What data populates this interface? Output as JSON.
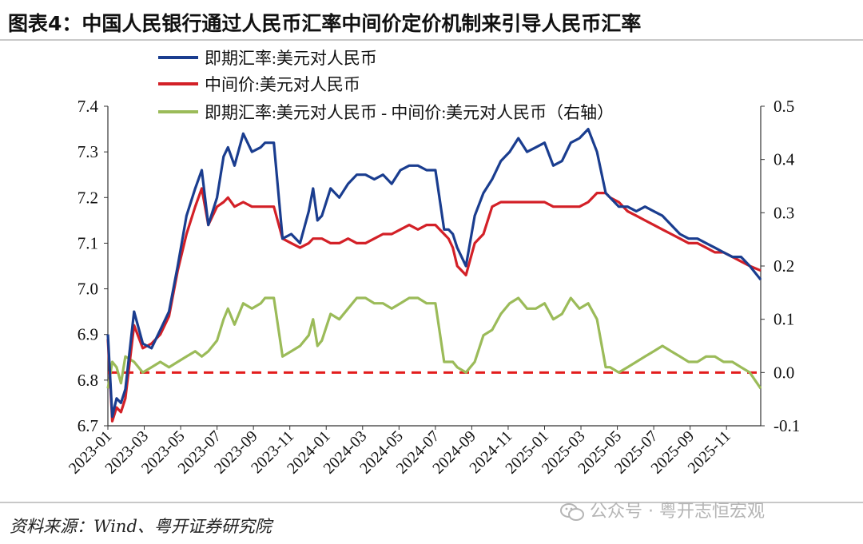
{
  "header": {
    "title": "图表4：中国人民银行通过人民币汇率中间价定价机制来引导人民币汇率"
  },
  "footer": {
    "source": "资料来源：Wind、粤开证券研究院",
    "watermark": "公众号 · 粤开志恒宏观",
    "watermark_icon": "wechat-icon"
  },
  "colors": {
    "spot": "#1a3d8f",
    "central": "#d32027",
    "diff": "#9bbb59",
    "zero": "#e21c1c"
  },
  "chart_data": {
    "type": "line",
    "x_tick_labels": [
      "2023-01",
      "2023-03",
      "2023-05",
      "2023-07",
      "2023-09",
      "2023-11",
      "2024-01",
      "2024-03",
      "2024-05",
      "2024-07",
      "2024-09",
      "2024-11",
      "2025-01",
      "2025-03",
      "2025-05",
      "2025-07",
      "2025-09",
      "2025-11"
    ],
    "x_range": [
      2023.0,
      2025.99
    ],
    "y_left": {
      "min": 6.7,
      "max": 7.4,
      "ticks": [
        "7.4",
        "7.3",
        "7.2",
        "7.1",
        "7.0",
        "6.9",
        "6.8",
        "6.7"
      ]
    },
    "y_right": {
      "min": -0.1,
      "max": 0.5,
      "ticks": [
        "0.5",
        "0.4",
        "0.3",
        "0.2",
        "0.1",
        "0.0",
        "-0.1"
      ]
    },
    "legend": [
      "即期汇率:美元对人民币",
      "中间价:美元对人民币",
      "即期汇率:美元对人民币 - 中间价:美元对人民币（右轴）"
    ],
    "reference_line": {
      "axis": "right",
      "value": 0.0
    },
    "series": [
      {
        "name": "即期汇率:美元对人民币",
        "axis": "left",
        "x": [
          2023.0,
          2023.02,
          2023.04,
          2023.06,
          2023.08,
          2023.12,
          2023.16,
          2023.2,
          2023.24,
          2023.28,
          2023.32,
          2023.36,
          2023.4,
          2023.43,
          2023.46,
          2023.5,
          2023.53,
          2023.55,
          2023.58,
          2023.62,
          2023.66,
          2023.7,
          2023.72,
          2023.76,
          2023.8,
          2023.84,
          2023.88,
          2023.92,
          2023.94,
          2023.96,
          2023.98,
          2024.02,
          2024.06,
          2024.1,
          2024.14,
          2024.18,
          2024.22,
          2024.26,
          2024.3,
          2024.34,
          2024.38,
          2024.42,
          2024.46,
          2024.5,
          2024.54,
          2024.56,
          2024.58,
          2024.6,
          2024.64,
          2024.68,
          2024.72,
          2024.76,
          2024.8,
          2024.84,
          2024.88,
          2024.92,
          2024.96,
          2025.0,
          2025.04,
          2025.08,
          2025.12,
          2025.16,
          2025.2,
          2025.24,
          2025.28,
          2025.3,
          2025.34,
          2025.38,
          2025.42,
          2025.46,
          2025.5,
          2025.54,
          2025.58,
          2025.62,
          2025.66,
          2025.7,
          2025.74,
          2025.78,
          2025.82,
          2025.86,
          2025.9,
          2025.94,
          2025.99
        ],
        "y": [
          6.9,
          6.72,
          6.76,
          6.75,
          6.78,
          6.95,
          6.88,
          6.87,
          6.91,
          6.95,
          7.05,
          7.16,
          7.22,
          7.26,
          7.14,
          7.2,
          7.29,
          7.31,
          7.27,
          7.34,
          7.3,
          7.31,
          7.32,
          7.32,
          7.11,
          7.12,
          7.1,
          7.17,
          7.22,
          7.15,
          7.16,
          7.22,
          7.2,
          7.23,
          7.25,
          7.25,
          7.24,
          7.25,
          7.23,
          7.26,
          7.27,
          7.27,
          7.26,
          7.26,
          7.13,
          7.13,
          7.12,
          7.09,
          7.05,
          7.16,
          7.21,
          7.24,
          7.28,
          7.3,
          7.33,
          7.3,
          7.31,
          7.32,
          7.27,
          7.28,
          7.32,
          7.33,
          7.35,
          7.3,
          7.21,
          7.2,
          7.18,
          7.18,
          7.17,
          7.18,
          7.17,
          7.16,
          7.14,
          7.12,
          7.11,
          7.11,
          7.1,
          7.09,
          7.08,
          7.07,
          7.07,
          7.05,
          7.02
        ]
      },
      {
        "name": "中间价:美元对人民币",
        "axis": "left",
        "x": [
          2023.0,
          2023.02,
          2023.04,
          2023.06,
          2023.08,
          2023.12,
          2023.16,
          2023.2,
          2023.24,
          2023.28,
          2023.32,
          2023.36,
          2023.4,
          2023.43,
          2023.46,
          2023.5,
          2023.53,
          2023.55,
          2023.58,
          2023.62,
          2023.66,
          2023.7,
          2023.72,
          2023.76,
          2023.8,
          2023.84,
          2023.88,
          2023.92,
          2023.94,
          2023.96,
          2023.98,
          2024.02,
          2024.06,
          2024.1,
          2024.14,
          2024.18,
          2024.22,
          2024.26,
          2024.3,
          2024.34,
          2024.38,
          2024.42,
          2024.46,
          2024.5,
          2024.54,
          2024.56,
          2024.58,
          2024.6,
          2024.64,
          2024.68,
          2024.72,
          2024.76,
          2024.8,
          2024.84,
          2024.88,
          2024.92,
          2024.96,
          2025.0,
          2025.04,
          2025.08,
          2025.12,
          2025.16,
          2025.2,
          2025.24,
          2025.28,
          2025.3,
          2025.34,
          2025.38,
          2025.42,
          2025.46,
          2025.5,
          2025.54,
          2025.58,
          2025.62,
          2025.66,
          2025.7,
          2025.74,
          2025.78,
          2025.82,
          2025.86,
          2025.9,
          2025.94,
          2025.99
        ],
        "y": [
          6.89,
          6.71,
          6.74,
          6.73,
          6.76,
          6.92,
          6.87,
          6.88,
          6.9,
          6.94,
          7.04,
          7.12,
          7.18,
          7.22,
          7.14,
          7.18,
          7.19,
          7.2,
          7.18,
          7.19,
          7.18,
          7.18,
          7.18,
          7.18,
          7.11,
          7.1,
          7.09,
          7.1,
          7.11,
          7.11,
          7.11,
          7.1,
          7.1,
          7.11,
          7.1,
          7.1,
          7.11,
          7.12,
          7.12,
          7.13,
          7.14,
          7.13,
          7.14,
          7.14,
          7.12,
          7.11,
          7.09,
          7.05,
          7.03,
          7.1,
          7.12,
          7.18,
          7.19,
          7.19,
          7.19,
          7.19,
          7.19,
          7.19,
          7.18,
          7.18,
          7.18,
          7.18,
          7.19,
          7.21,
          7.21,
          7.2,
          7.19,
          7.17,
          7.16,
          7.15,
          7.14,
          7.13,
          7.12,
          7.11,
          7.1,
          7.1,
          7.09,
          7.08,
          7.08,
          7.07,
          7.06,
          7.05,
          7.04
        ]
      },
      {
        "name": "即期汇率:美元对人民币 - 中间价:美元对人民币（右轴）",
        "axis": "right",
        "x": [
          2023.0,
          2023.02,
          2023.04,
          2023.06,
          2023.08,
          2023.12,
          2023.16,
          2023.2,
          2023.24,
          2023.28,
          2023.32,
          2023.36,
          2023.4,
          2023.43,
          2023.46,
          2023.5,
          2023.53,
          2023.55,
          2023.58,
          2023.62,
          2023.66,
          2023.7,
          2023.72,
          2023.76,
          2023.8,
          2023.84,
          2023.88,
          2023.92,
          2023.94,
          2023.96,
          2023.98,
          2024.02,
          2024.06,
          2024.1,
          2024.14,
          2024.18,
          2024.22,
          2024.26,
          2024.3,
          2024.34,
          2024.38,
          2024.42,
          2024.46,
          2024.5,
          2024.54,
          2024.56,
          2024.58,
          2024.6,
          2024.64,
          2024.68,
          2024.72,
          2024.76,
          2024.8,
          2024.84,
          2024.88,
          2024.92,
          2024.96,
          2025.0,
          2025.04,
          2025.08,
          2025.12,
          2025.16,
          2025.2,
          2025.24,
          2025.28,
          2025.3,
          2025.34,
          2025.38,
          2025.42,
          2025.46,
          2025.5,
          2025.54,
          2025.58,
          2025.62,
          2025.66,
          2025.7,
          2025.74,
          2025.78,
          2025.82,
          2025.86,
          2025.9,
          2025.94,
          2025.99
        ],
        "y": [
          -0.03,
          0.02,
          0.01,
          -0.02,
          0.03,
          0.02,
          0.0,
          0.01,
          0.02,
          0.01,
          0.02,
          0.03,
          0.04,
          0.03,
          0.04,
          0.06,
          0.1,
          0.12,
          0.09,
          0.13,
          0.12,
          0.13,
          0.14,
          0.14,
          0.03,
          0.04,
          0.05,
          0.07,
          0.1,
          0.05,
          0.06,
          0.11,
          0.1,
          0.12,
          0.14,
          0.14,
          0.13,
          0.13,
          0.12,
          0.13,
          0.14,
          0.14,
          0.13,
          0.13,
          0.02,
          0.02,
          0.02,
          0.01,
          0.0,
          0.02,
          0.07,
          0.08,
          0.11,
          0.13,
          0.14,
          0.12,
          0.12,
          0.13,
          0.1,
          0.11,
          0.14,
          0.12,
          0.13,
          0.1,
          0.01,
          0.01,
          0.0,
          0.01,
          0.02,
          0.03,
          0.04,
          0.05,
          0.04,
          0.03,
          0.02,
          0.02,
          0.03,
          0.03,
          0.02,
          0.02,
          0.01,
          0.0,
          -0.03
        ]
      }
    ]
  }
}
